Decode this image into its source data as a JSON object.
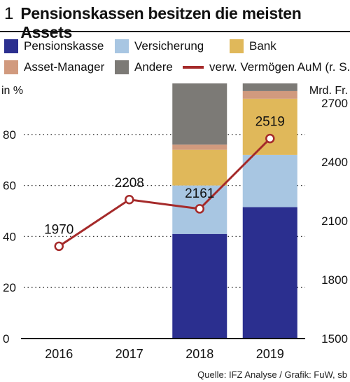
{
  "figure": {
    "number": "1",
    "title": "Pensionskassen besitzen die meisten Assets",
    "source": "Quelle: IFZ Analyse / Grafik: FuW, sb"
  },
  "chart_data": {
    "type": "bar",
    "stacked": true,
    "categories": [
      "2016",
      "2017",
      "2018",
      "2019"
    ],
    "ylabel_left": "in %",
    "ylabel_right": "Mrd. Fr.",
    "ylim_left": [
      0,
      100
    ],
    "ylim_right": [
      1500,
      2800
    ],
    "yticks_left": [
      "0",
      "20",
      "40",
      "60",
      "80"
    ],
    "yticks_right": [
      "1500",
      "1800",
      "2100",
      "2400",
      "2700"
    ],
    "grid": "dotted horizontal",
    "legend": "top",
    "series": [
      {
        "name": "Pensionskasse",
        "color": "#2b2f8f",
        "values": [
          null,
          null,
          41,
          51.5
        ]
      },
      {
        "name": "Versicherung",
        "color": "#a8c6e2",
        "values": [
          null,
          null,
          19,
          20.5
        ]
      },
      {
        "name": "Bank",
        "color": "#e0b85a",
        "values": [
          null,
          null,
          14,
          22
        ]
      },
      {
        "name": "Asset-Manager",
        "color": "#d19a7e",
        "values": [
          null,
          null,
          2,
          3
        ]
      },
      {
        "name": "Andere",
        "color": "#7c7a76",
        "values": [
          null,
          null,
          24,
          3
        ]
      }
    ],
    "line": {
      "name": "verw. Vermögen AuM (r. S.)",
      "color": "#a52a2a",
      "axis": "right",
      "values": [
        1970,
        2208,
        2161,
        2519
      ],
      "labels": [
        "1970",
        "2208",
        "2161",
        "2519"
      ]
    }
  }
}
